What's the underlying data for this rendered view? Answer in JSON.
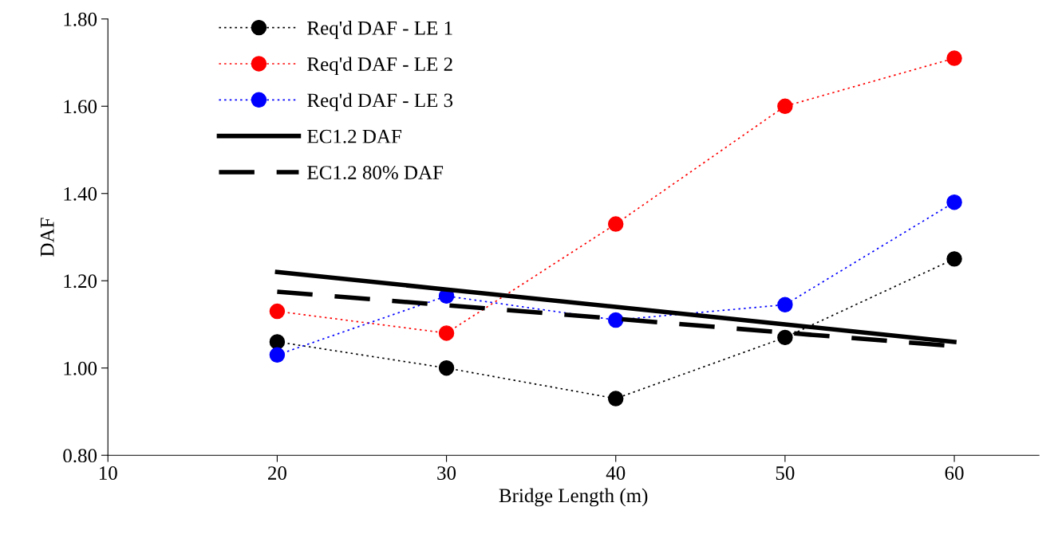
{
  "chart_data": {
    "type": "line",
    "xlabel": "Bridge Length (m)",
    "ylabel": "DAF",
    "x": [
      20,
      30,
      40,
      50,
      60
    ],
    "series": [
      {
        "name": "Req'd DAF - LE 1",
        "color": "#000000",
        "values": [
          1.06,
          1.0,
          0.93,
          1.07,
          1.25
        ],
        "marker": "circle",
        "line_style": "dotted"
      },
      {
        "name": "Req'd DAF - LE 2",
        "color": "#ff0000",
        "values": [
          1.13,
          1.08,
          1.33,
          1.6,
          1.71
        ],
        "marker": "circle",
        "line_style": "dotted"
      },
      {
        "name": "Req'd DAF - LE 3",
        "color": "#0000ff",
        "values": [
          1.03,
          1.165,
          1.11,
          1.145,
          1.38
        ],
        "marker": "circle",
        "line_style": "dotted"
      },
      {
        "name": "EC1.2 DAF",
        "color": "#000000",
        "values": [
          1.22,
          1.18,
          1.14,
          1.1,
          1.06
        ],
        "marker": "none",
        "line_style": "solid"
      },
      {
        "name": "EC1.2 80% DAF",
        "color": "#000000",
        "values": [
          1.175,
          1.144,
          1.113,
          1.081,
          1.05
        ],
        "marker": "none",
        "line_style": "dashed"
      }
    ],
    "xlim": [
      10,
      65
    ],
    "xticks": [
      10,
      20,
      30,
      40,
      50,
      60
    ],
    "ylim": [
      0.8,
      1.8
    ],
    "yticks": [
      {
        "value": 0.8,
        "label": "0.80"
      },
      {
        "value": 1.0,
        "label": "1.00"
      },
      {
        "value": 1.2,
        "label": "1.20"
      },
      {
        "value": 1.4,
        "label": "1.40"
      },
      {
        "value": 1.6,
        "label": "1.60"
      },
      {
        "value": 1.8,
        "label": "1.80"
      }
    ],
    "grid": false,
    "legend": "top left"
  }
}
